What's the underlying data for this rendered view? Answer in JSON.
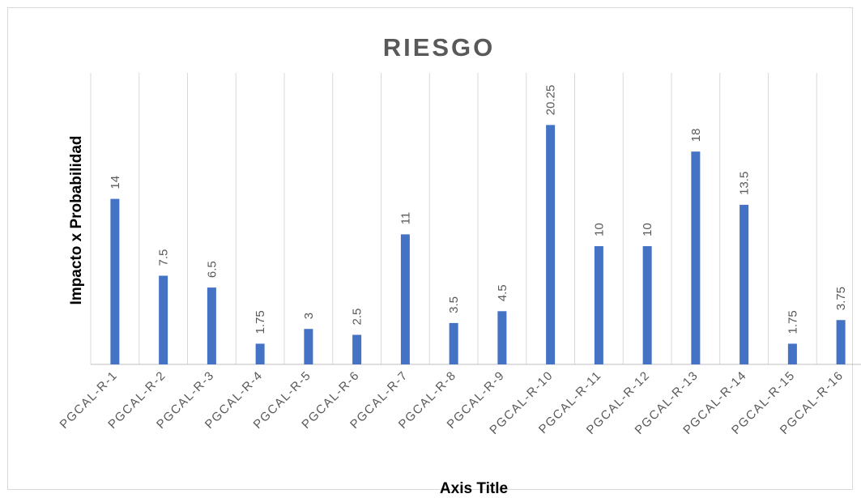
{
  "chart_data": {
    "type": "bar",
    "title": "RIESGO",
    "xlabel": "Axis Title",
    "ylabel": "Impacto x Probabilidad",
    "categories": [
      "PGCAL-R-1",
      "PGCAL-R-2",
      "PGCAL-R-3",
      "PGCAL-R-4",
      "PGCAL-R-5",
      "PGCAL-R-6",
      "PGCAL-R-7",
      "PGCAL-R-8",
      "PGCAL-R-9",
      "PGCAL-R-10",
      "PGCAL-R-11",
      "PGCAL-R-12",
      "PGCAL-R-13",
      "PGCAL-R-14",
      "PGCAL-R-15",
      "PGCAL-R-16"
    ],
    "values": [
      14,
      7.5,
      6.5,
      1.75,
      3,
      2.5,
      11,
      3.5,
      4.5,
      20.25,
      10,
      10,
      18,
      13.5,
      1.75,
      3.75
    ],
    "data_labels": [
      "14",
      "7.5",
      "6.5",
      "1.75",
      "3",
      "2.5",
      "11",
      "3.5",
      "4.5",
      "20.25",
      "10",
      "10",
      "18",
      "13.5",
      "1.75",
      "3.75"
    ],
    "ylim": [
      0,
      25
    ],
    "grid": "vertical",
    "legend": "none",
    "colors": {
      "bar": "#4472c4",
      "grid": "#d9d9d9",
      "text": "#595959"
    }
  }
}
